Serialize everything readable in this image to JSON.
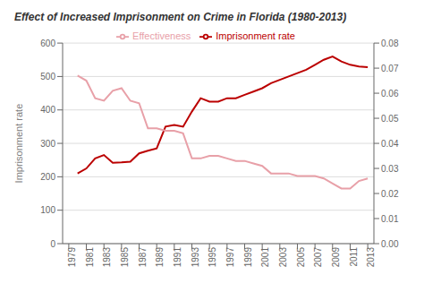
{
  "chart_data": {
    "type": "line",
    "title": "Effect of Increased Imprisonment on Crime in Florida (1980-2013)",
    "ylabel": "Imprisonment rate",
    "x": [
      1980,
      1981,
      1982,
      1983,
      1984,
      1985,
      1986,
      1987,
      1988,
      1989,
      1990,
      1991,
      1992,
      1993,
      1994,
      1995,
      1996,
      1997,
      1998,
      1999,
      2000,
      2001,
      2002,
      2003,
      2004,
      2005,
      2006,
      2007,
      2008,
      2009,
      2010,
      2011,
      2012,
      2013
    ],
    "series": [
      {
        "name": "Imprisonment rate",
        "color": "#bb0000",
        "values": [
          210,
          225,
          255,
          265,
          242,
          243,
          245,
          270,
          278,
          285,
          350,
          355,
          350,
          395,
          435,
          425,
          425,
          435,
          435,
          445,
          455,
          465,
          480,
          490,
          500,
          510,
          520,
          535,
          550,
          560,
          545,
          535,
          530,
          528
        ]
      },
      {
        "name": "Effectiveness",
        "color": "#e8a0a8",
        "axis": "y2",
        "values": [
          0.067,
          0.065,
          0.058,
          0.057,
          0.061,
          0.062,
          0.057,
          0.056,
          0.046,
          0.046,
          0.045,
          0.045,
          0.044,
          0.034,
          0.034,
          0.035,
          0.035,
          0.034,
          0.033,
          0.033,
          0.032,
          0.031,
          0.028,
          0.028,
          0.028,
          0.027,
          0.027,
          0.027,
          0.026,
          0.024,
          0.022,
          0.022,
          0.025,
          0.026
        ]
      }
    ],
    "xlim": [
      1978.3,
      2013.7
    ],
    "xticks": [
      1979,
      1981,
      1983,
      1985,
      1987,
      1989,
      1991,
      1993,
      1995,
      1997,
      1999,
      2001,
      2003,
      2005,
      2007,
      2009,
      2011,
      2013
    ],
    "ylim": [
      0,
      600
    ],
    "yticks": [
      0,
      100,
      200,
      300,
      400,
      500,
      600
    ],
    "y2lim": [
      0,
      0.08
    ],
    "y2ticks": [
      {
        "value": 0,
        "label": "0.00"
      },
      0.01,
      0.02,
      0.03,
      0.04,
      0.05,
      0.06,
      0.07,
      0.08
    ],
    "grid": true,
    "legend": "top"
  }
}
